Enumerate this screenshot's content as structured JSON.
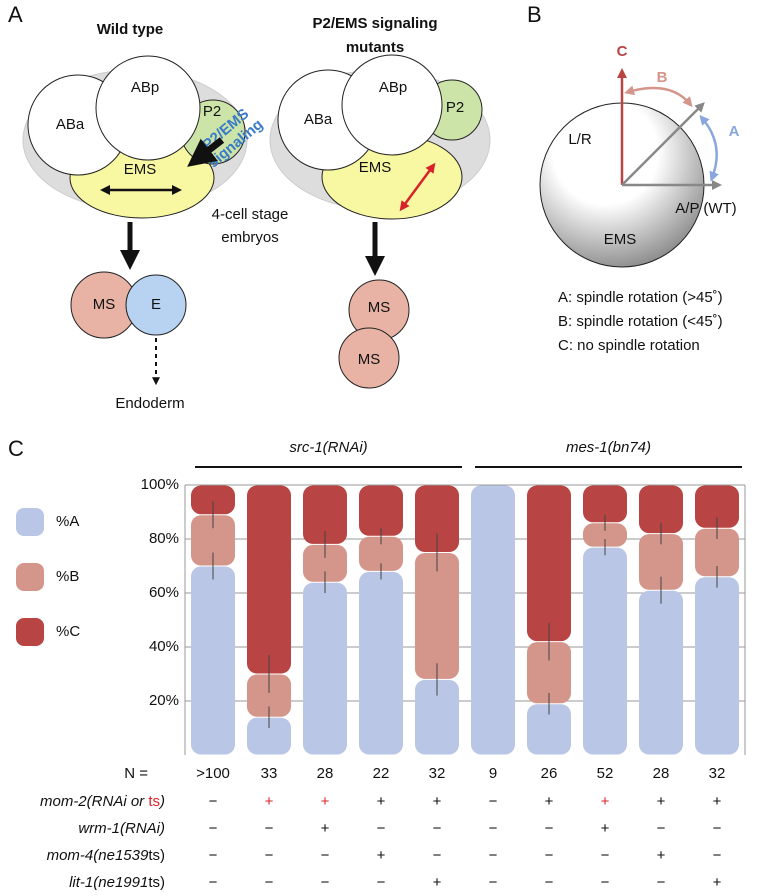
{
  "panel_a": {
    "label": "A",
    "wild_type": {
      "title": "Wild type",
      "cells": [
        "ABa",
        "ABp",
        "P2",
        "EMS"
      ],
      "signal": [
        "P2/EMS",
        "signaling"
      ],
      "daughters": [
        "MS",
        "E"
      ],
      "fate": "Endoderm"
    },
    "stage": [
      "4-cell stage",
      "embryos"
    ],
    "mutant": {
      "title": [
        "P2/EMS signaling",
        "mutants"
      ],
      "cells": [
        "ABa",
        "ABp",
        "P2",
        "EMS"
      ],
      "daughters": [
        "MS",
        "MS"
      ]
    }
  },
  "panel_b": {
    "label": "B",
    "arrows": [
      "C",
      "B",
      "A"
    ],
    "axes": [
      "L/R",
      "A/P (WT)"
    ],
    "cell": "EMS",
    "key": [
      "A: spindle rotation (>45˚)",
      "B: spindle rotation (<45˚)",
      "C: no spindle rotation"
    ]
  },
  "chart_data": {
    "type": "stacked_bar",
    "panel_label": "C",
    "groups": [
      "src-1(RNAi)",
      "mes-1(bn74)"
    ],
    "n_label": "N =",
    "categories": [
      ">100",
      "33",
      "28",
      "22",
      "32",
      "9",
      "26",
      "52",
      "28",
      "32"
    ],
    "series": [
      {
        "name": "%A",
        "color": "#b9c6e6",
        "values": [
          70,
          14,
          64,
          68,
          28,
          100,
          19,
          77,
          61,
          66
        ],
        "errors": [
          5,
          4,
          4,
          3,
          6,
          null,
          4,
          3,
          5,
          4
        ]
      },
      {
        "name": "%B",
        "color": "#d4958a",
        "values": [
          19,
          16,
          14,
          13,
          47,
          0,
          23,
          9,
          21,
          18
        ],
        "errors": [
          5,
          7,
          5,
          3,
          7,
          null,
          7,
          3,
          4,
          4
        ]
      },
      {
        "name": "%C",
        "color": "#b84444",
        "values": [
          11,
          70,
          22,
          19,
          25,
          0,
          58,
          14,
          18,
          16
        ]
      }
    ],
    "ylim": [
      0,
      100
    ],
    "yticks": [
      {
        "value": 20,
        "label": "20%"
      },
      {
        "value": 40,
        "label": "40%"
      },
      {
        "value": 60,
        "label": "60%"
      },
      {
        "value": 80,
        "label": "80%"
      },
      {
        "value": 100,
        "label": "100%"
      }
    ],
    "grid": true,
    "treatments": [
      {
        "label": [
          "mom-2(RNAi or ",
          "ts",
          ")"
        ],
        "cells": [
          "−",
          "+",
          "+",
          "+",
          "+",
          "−",
          "+",
          "+",
          "+",
          "+"
        ],
        "red": [
          false,
          true,
          true,
          false,
          false,
          false,
          false,
          true,
          false,
          false
        ]
      },
      {
        "label": [
          "wrm-1(RNAi)"
        ],
        "cells": [
          "−",
          "−",
          "+",
          "−",
          "−",
          "−",
          "−",
          "+",
          "−",
          "−"
        ]
      },
      {
        "label": [
          "mom-4(",
          "ne1539",
          "ts)"
        ],
        "cells": [
          "−",
          "−",
          "−",
          "+",
          "−",
          "−",
          "−",
          "−",
          "+",
          "−"
        ]
      },
      {
        "label": [
          "lit-1(",
          "ne1991",
          "ts)"
        ],
        "cells": [
          "−",
          "−",
          "−",
          "−",
          "+",
          "−",
          "−",
          "−",
          "−",
          "+"
        ]
      }
    ]
  }
}
